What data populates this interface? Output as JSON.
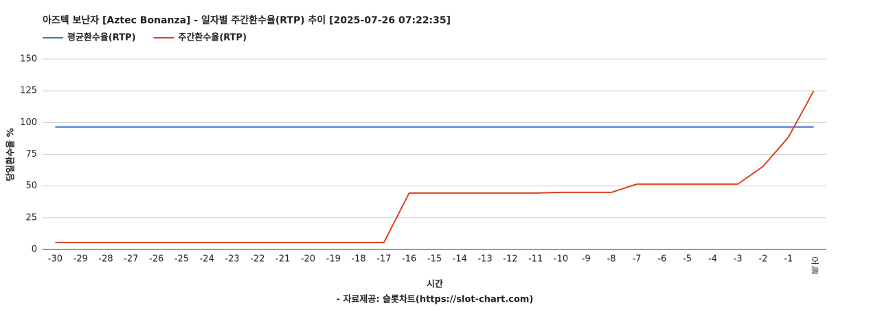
{
  "chart_data": {
    "type": "line",
    "title": "아즈텍 보난자 [Aztec Bonanza] - 일자별 주간환수율(RTP) 추이 [2025-07-26 07:22:35]",
    "x_label": "시간",
    "y_label": "당일환수율 %",
    "source": "- 자료제공: 슬롯차트(https://slot-chart.com)",
    "categories": [
      "-30",
      "-29",
      "-28",
      "-27",
      "-26",
      "-25",
      "-24",
      "-23",
      "-22",
      "-21",
      "-20",
      "-19",
      "-18",
      "-17",
      "-16",
      "-15",
      "-14",
      "-13",
      "-12",
      "-11",
      "-10",
      "-9",
      "-8",
      "-7",
      "-6",
      "-5",
      "-4",
      "-3",
      "-2",
      "-1",
      "오늘"
    ],
    "series": [
      {
        "name": "평균환수율(RTP)",
        "color": "#3c6fd6",
        "values": [
          96.5,
          96.5,
          96.5,
          96.5,
          96.5,
          96.5,
          96.5,
          96.5,
          96.5,
          96.5,
          96.5,
          96.5,
          96.5,
          96.5,
          96.5,
          96.5,
          96.5,
          96.5,
          96.5,
          96.5,
          96.5,
          96.5,
          96.5,
          96.5,
          96.5,
          96.5,
          96.5,
          96.5,
          96.5,
          96.5,
          96.5
        ]
      },
      {
        "name": "주간환수율(RTP)",
        "color": "#d9421c",
        "values": [
          5.5,
          5.5,
          5.5,
          5.5,
          5.5,
          5.5,
          5.5,
          5.5,
          5.5,
          5.5,
          5.5,
          5.5,
          5.5,
          5.5,
          44.5,
          44.5,
          44.5,
          44.5,
          44.5,
          44.5,
          45,
          45,
          45,
          51.5,
          51.5,
          51.5,
          51.5,
          51.5,
          65.5,
          88.5,
          125
        ]
      }
    ],
    "ylim": [
      0,
      150
    ],
    "yticks": [
      0,
      25,
      50,
      75,
      100,
      125,
      150
    ],
    "grid": true
  }
}
